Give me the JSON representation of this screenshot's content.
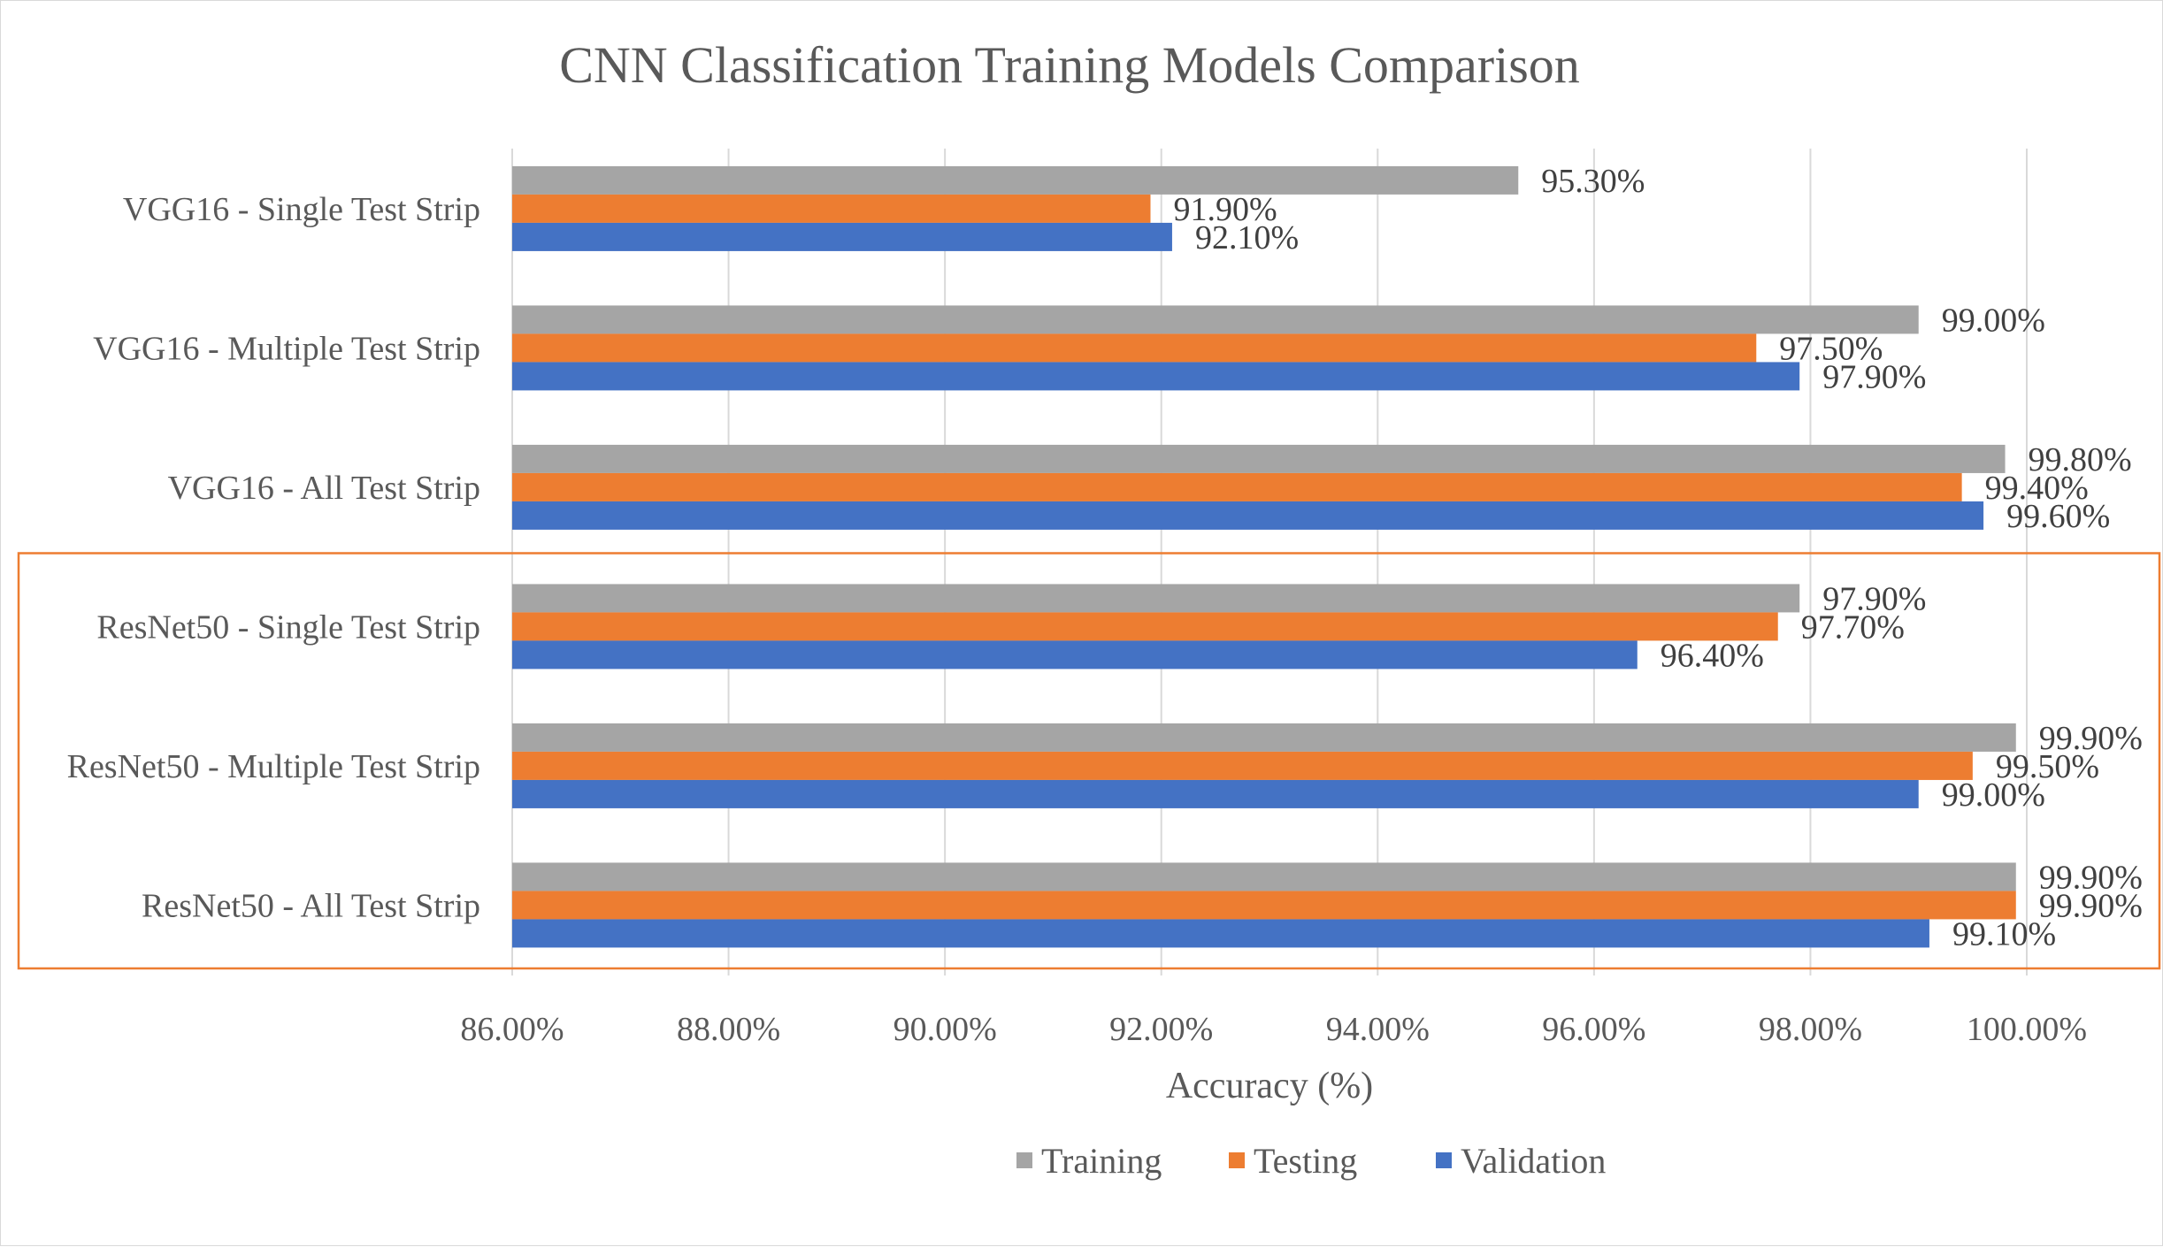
{
  "chart_data": {
    "type": "bar",
    "orientation": "horizontal",
    "title": "CNN Classification Training Models Comparison",
    "xlabel": "Accuracy (%)",
    "ylabel": "",
    "xlim": [
      86,
      100
    ],
    "x_ticks": [
      "86.00%",
      "88.00%",
      "90.00%",
      "92.00%",
      "94.00%",
      "96.00%",
      "98.00%",
      "100.00%"
    ],
    "grid": "vertical",
    "legend_position": "bottom",
    "categories": [
      "VGG16 - Single Test Strip",
      "VGG16 - Multiple Test Strip",
      "VGG16 - All Test Strip",
      "ResNet50 - Single Test Strip",
      "ResNet50 - Multiple Test Strip",
      "ResNet50 - All Test Strip"
    ],
    "series": [
      {
        "name": "Training",
        "color": "#a5a5a5",
        "values": [
          95.3,
          99.0,
          99.8,
          97.9,
          99.9,
          99.9
        ],
        "labels": [
          "95.30%",
          "99.00%",
          "99.80%",
          "97.90%",
          "99.90%",
          "99.90%"
        ]
      },
      {
        "name": "Testing",
        "color": "#ed7d31",
        "values": [
          91.9,
          97.5,
          99.4,
          97.7,
          99.5,
          99.9
        ],
        "labels": [
          "91.90%",
          "97.50%",
          "99.40%",
          "97.70%",
          "99.50%",
          "99.90%"
        ]
      },
      {
        "name": "Validation",
        "color": "#4472c4",
        "values": [
          92.1,
          97.9,
          99.6,
          96.4,
          99.0,
          99.1
        ],
        "labels": [
          "92.10%",
          "97.90%",
          "99.60%",
          "96.40%",
          "99.00%",
          "99.10%"
        ]
      }
    ],
    "highlight": {
      "categories": [
        "ResNet50 - Single Test Strip",
        "ResNet50 - Multiple Test Strip",
        "ResNet50 - All Test Strip"
      ],
      "color": "#ed7d31"
    }
  },
  "colors": {
    "grid": "#d9d9d9",
    "text": "#595959"
  }
}
